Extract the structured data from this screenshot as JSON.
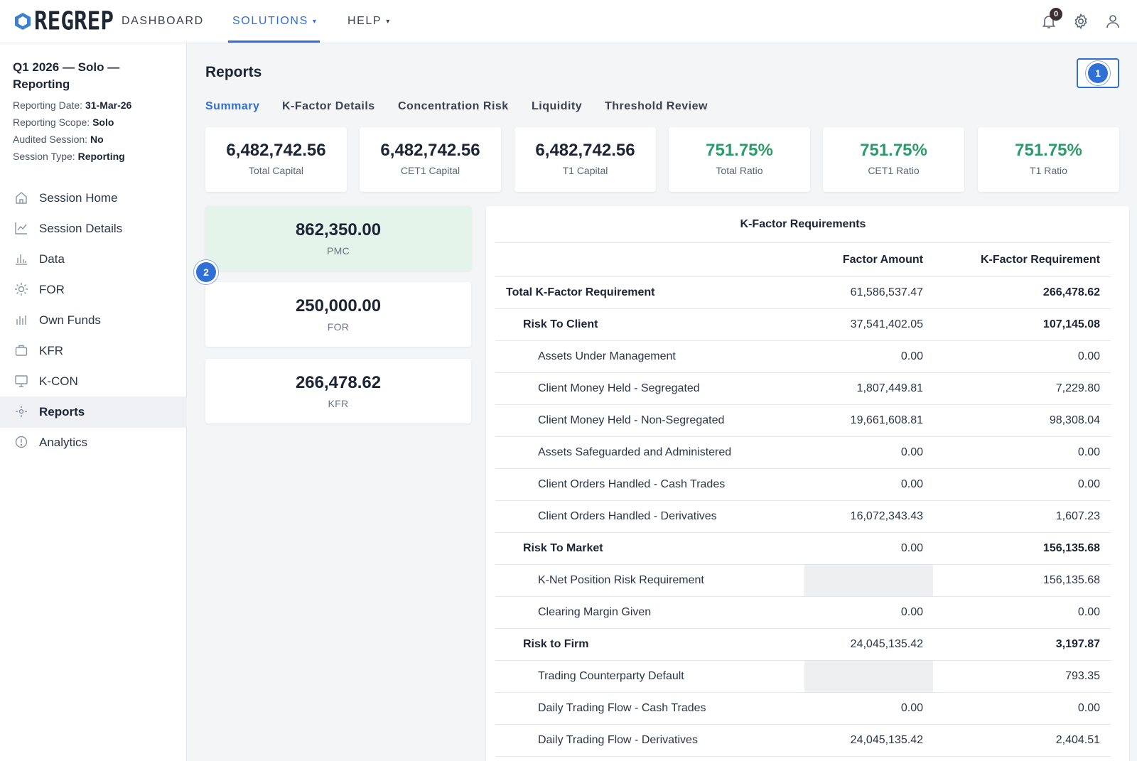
{
  "brand": {
    "name": "REGREP"
  },
  "nav": {
    "dashboard": "DASHBOARD",
    "solutions": "SOLUTIONS",
    "help": "HELP",
    "caret": "▾"
  },
  "notifications": {
    "count": "0"
  },
  "session": {
    "title": "Q1 2026 — Solo — Reporting",
    "reporting_date_label": "Reporting Date:",
    "reporting_date": "31-Mar-26",
    "scope_label": "Reporting Scope:",
    "scope": "Solo",
    "audited_label": "Audited Session:",
    "audited": "No",
    "type_label": "Session Type:",
    "type": "Reporting"
  },
  "sidebar": {
    "items": [
      {
        "label": "Session Home",
        "icon": "home-icon"
      },
      {
        "label": "Session Details",
        "icon": "line-chart-icon"
      },
      {
        "label": "Data",
        "icon": "bar-chart-icon"
      },
      {
        "label": "FOR",
        "icon": "sun-icon"
      },
      {
        "label": "Own Funds",
        "icon": "column-chart-icon"
      },
      {
        "label": "KFR",
        "icon": "briefcase-icon"
      },
      {
        "label": "K-CON",
        "icon": "monitor-icon"
      },
      {
        "label": "Reports",
        "icon": "settings-dot-icon",
        "active": true
      },
      {
        "label": "Analytics",
        "icon": "info-circle-icon"
      }
    ]
  },
  "page": {
    "title": "Reports",
    "step1": "1",
    "step2": "2"
  },
  "tabs": [
    "Summary",
    "K-Factor Details",
    "Concentration Risk",
    "Liquidity",
    "Threshold Review"
  ],
  "kpis": [
    {
      "value": "6,482,742.56",
      "label": "Total Capital"
    },
    {
      "value": "6,482,742.56",
      "label": "CET1 Capital"
    },
    {
      "value": "6,482,742.56",
      "label": "T1 Capital"
    },
    {
      "value": "751.75%",
      "label": "Total Ratio"
    },
    {
      "value": "751.75%",
      "label": "CET1 Ratio"
    },
    {
      "value": "751.75%",
      "label": "T1 Ratio"
    }
  ],
  "capital_cards": [
    {
      "value": "862,350.00",
      "label": "PMC"
    },
    {
      "value": "250,000.00",
      "label": "FOR"
    },
    {
      "value": "266,478.62",
      "label": "KFR"
    }
  ],
  "kfactor": {
    "title": "K-Factor Requirements",
    "col_factor_amount": "Factor Amount",
    "col_requirement": "K-Factor Requirement",
    "rows": [
      {
        "name": "Total K-Factor Requirement",
        "factor": "61,586,537.47",
        "req": "266,478.62",
        "level": 0
      },
      {
        "name": "Risk To Client",
        "factor": "37,541,402.05",
        "req": "107,145.08",
        "level": 1
      },
      {
        "name": "Assets Under Management",
        "factor": "0.00",
        "req": "0.00",
        "level": 2
      },
      {
        "name": "Client Money Held - Segregated",
        "factor": "1,807,449.81",
        "req": "7,229.80",
        "level": 2
      },
      {
        "name": "Client Money Held - Non-Segregated",
        "factor": "19,661,608.81",
        "req": "98,308.04",
        "level": 2
      },
      {
        "name": "Assets Safeguarded and Administered",
        "factor": "0.00",
        "req": "0.00",
        "level": 2
      },
      {
        "name": "Client Orders Handled - Cash Trades",
        "factor": "0.00",
        "req": "0.00",
        "level": 2
      },
      {
        "name": "Client Orders Handled - Derivatives",
        "factor": "16,072,343.43",
        "req": "1,607.23",
        "level": 2
      },
      {
        "name": "Risk To Market",
        "factor": "0.00",
        "req": "156,135.68",
        "level": 1
      },
      {
        "name": "K-Net Position Risk Requirement",
        "factor": "",
        "req": "156,135.68",
        "level": 2
      },
      {
        "name": "Clearing Margin Given",
        "factor": "0.00",
        "req": "0.00",
        "level": 2
      },
      {
        "name": "Risk to Firm",
        "factor": "24,045,135.42",
        "req": "3,197.87",
        "level": 1
      },
      {
        "name": "Trading Counterparty Default",
        "factor": "",
        "req": "793.35",
        "level": 2
      },
      {
        "name": "Daily Trading Flow - Cash Trades",
        "factor": "0.00",
        "req": "0.00",
        "level": 2
      },
      {
        "name": "Daily Trading Flow - Derivatives",
        "factor": "24,045,135.42",
        "req": "2,404.51",
        "level": 2
      }
    ]
  },
  "colors": {
    "accent": "#2f6fd6",
    "positive": "#2d9a6c",
    "highlight_card": "#e4f4ea"
  }
}
